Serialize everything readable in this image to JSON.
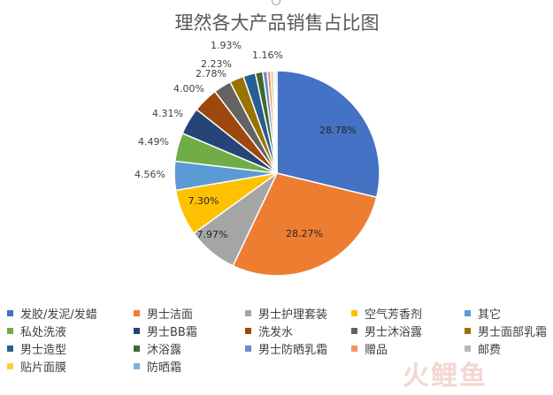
{
  "chart_data": {
    "type": "pie",
    "title": "理然各大产品销售占比图",
    "slices": [
      {
        "name": "发胶/发泥/发蜡",
        "value": 28.78,
        "label": "28.78%",
        "color": "#4472C4"
      },
      {
        "name": "男士洁面",
        "value": 28.27,
        "label": "28.27%",
        "color": "#ED7D31"
      },
      {
        "name": "男士护理套装",
        "value": 7.97,
        "label": "7.97%",
        "color": "#A5A5A5"
      },
      {
        "name": "空气芳香剂",
        "value": 7.3,
        "label": "7.30%",
        "color": "#FFC000"
      },
      {
        "name": "其它",
        "value": 4.56,
        "label": "4.56%",
        "color": "#5B9BD5"
      },
      {
        "name": "私处洗液",
        "value": 4.49,
        "label": "4.49%",
        "color": "#70AD47"
      },
      {
        "name": "男士BB霜",
        "value": 4.31,
        "label": "4.31%",
        "color": "#264478"
      },
      {
        "name": "洗发水",
        "value": 4.0,
        "label": "4.00%",
        "color": "#9E480E"
      },
      {
        "name": "男士沐浴露",
        "value": 2.78,
        "label": "2.78%",
        "color": "#636363"
      },
      {
        "name": "男士面部乳霜",
        "value": 2.23,
        "label": "2.23%",
        "color": "#997300"
      },
      {
        "name": "男士造型",
        "value": 1.93,
        "label": "1.93%",
        "color": "#255E91"
      },
      {
        "name": "沐浴露",
        "value": 1.16,
        "label": "1.16%",
        "color": "#43682B"
      },
      {
        "name": "男士防晒乳霜",
        "value": 0.7,
        "label": "",
        "color": "#698ED0"
      },
      {
        "name": "赠品",
        "value": 0.55,
        "label": "",
        "color": "#F1975A"
      },
      {
        "name": "邮费",
        "value": 0.4,
        "label": "",
        "color": "#B7B7B7"
      },
      {
        "name": "贴片面膜",
        "value": 0.3,
        "label": "",
        "color": "#FFCD33"
      },
      {
        "name": "防晒霜",
        "value": 0.27,
        "label": "",
        "color": "#7CAFDD"
      }
    ],
    "legend_position": "bottom",
    "start_angle_deg": 0,
    "direction": "clockwise"
  },
  "watermark": "火鲤鱼"
}
